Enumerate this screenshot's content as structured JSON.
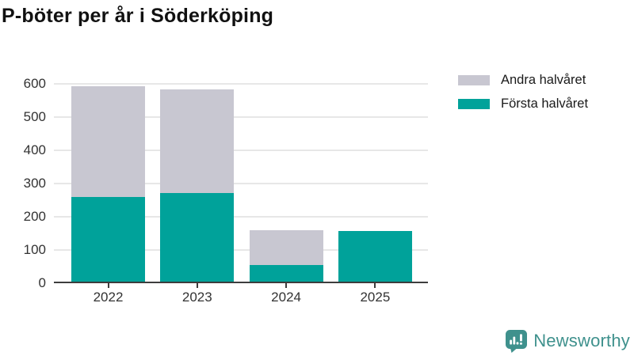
{
  "title": "P-böter per år i Söderköping",
  "legend": [
    {
      "label": "Andra halvåret",
      "color": "#c8c7d1"
    },
    {
      "label": "Första halvåret",
      "color": "#00a29a"
    }
  ],
  "chart_data": {
    "type": "bar",
    "stacked": true,
    "title": "P-böter per år i Söderköping",
    "categories": [
      "2022",
      "2023",
      "2024",
      "2025"
    ],
    "series": [
      {
        "name": "Första halvåret",
        "color": "#00a29a",
        "values": [
          255,
          267,
          50,
          153
        ]
      },
      {
        "name": "Andra halvåret",
        "color": "#c8c7d1",
        "values": [
          333,
          311,
          105,
          0
        ]
      }
    ],
    "totals": [
      588,
      578,
      155,
      153
    ],
    "xlabel": "",
    "ylabel": "",
    "ylim": [
      0,
      600
    ],
    "yticks": [
      0,
      100,
      200,
      300,
      400,
      500,
      600
    ],
    "grid": true,
    "legend_position": "top-right",
    "colors": {
      "gridline": "#e7e7e7",
      "axis": "#3d3d3d",
      "tick_text": "#333333"
    }
  },
  "branding": {
    "name": "Newsworthy",
    "icon": "newsworthy-speech-bubble-chart-icon",
    "color": "#3f918d"
  }
}
